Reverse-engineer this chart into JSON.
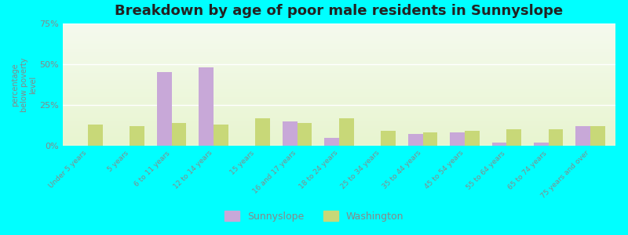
{
  "title": "Breakdown by age of poor male residents in Sunnyslope",
  "ylabel": "percentage\nbelow poverty\nlevel",
  "categories": [
    "Under 5 years",
    "5 years",
    "6 to 11 years",
    "12 to 14 years",
    "15 years",
    "16 and 17 years",
    "18 to 24 years",
    "25 to 34 years",
    "35 to 44 years",
    "45 to 54 years",
    "55 to 64 years",
    "65 to 74 years",
    "75 years and over"
  ],
  "sunnyslope": [
    0,
    0,
    45,
    48,
    0,
    15,
    5,
    0,
    7,
    8,
    2,
    2,
    12
  ],
  "washington": [
    13,
    12,
    14,
    13,
    17,
    14,
    17,
    9,
    8,
    9,
    10,
    10,
    12
  ],
  "sunnyslope_color": "#c8a8d8",
  "washington_color": "#c8d878",
  "ylim": [
    0,
    75
  ],
  "yticks": [
    0,
    25,
    50,
    75
  ],
  "ytick_labels": [
    "0%",
    "25%",
    "50%",
    "75%"
  ],
  "bar_width": 0.35,
  "title_fontsize": 13,
  "outer_bg_color": "#00ffff",
  "legend_sunnyslope": "Sunnyslope",
  "legend_washington": "Washington"
}
